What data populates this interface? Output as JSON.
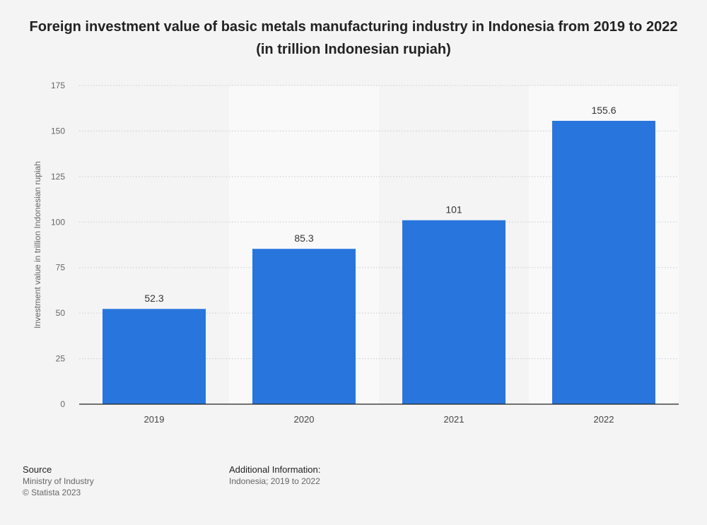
{
  "chart_data": {
    "type": "bar",
    "title": "Foreign investment value of basic metals manufacturing industry in Indonesia from 2019 to 2022 (in trillion Indonesian rupiah)",
    "ylabel": "Investment value in trillion Indonesian rupiah",
    "xlabel": "",
    "categories": [
      "2019",
      "2020",
      "2021",
      "2022"
    ],
    "values": [
      52.3,
      85.3,
      101,
      155.6
    ],
    "value_labels": [
      "52.3",
      "85.3",
      "101",
      "155.6"
    ],
    "ylim": [
      0,
      175
    ],
    "yticks": [
      0,
      25,
      50,
      75,
      100,
      125,
      150,
      175
    ],
    "grid": true,
    "bar_color": "#2876dd",
    "band_color": "#f9f9f9"
  },
  "footer": {
    "source_heading": "Source",
    "source_line1": "Ministry of Industry",
    "source_line2": "© Statista 2023",
    "info_heading": "Additional Information:",
    "info_line": "Indonesia; 2019 to 2022"
  }
}
